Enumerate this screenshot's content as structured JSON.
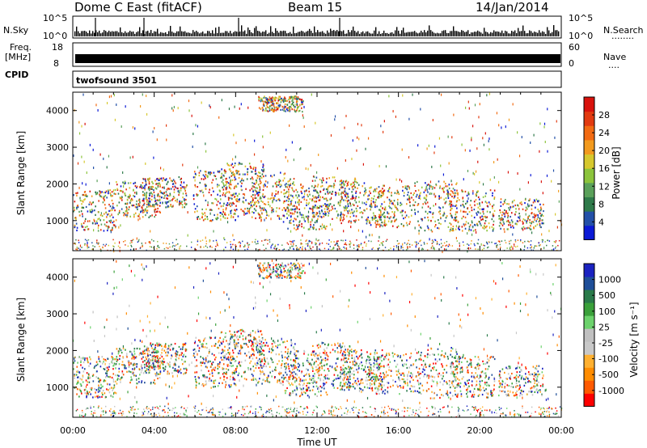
{
  "header": {
    "station": "Dome C East (fitACF)",
    "beam": "Beam 15",
    "date": "14/Jan/2014"
  },
  "strips": {
    "nsky_label": "N.Sky",
    "nsky_ticks": [
      "10^5",
      "10^0"
    ],
    "nsearch_label": "N.Search",
    "nsearch_dots": "........",
    "freq_label_1": "Freq.",
    "freq_label_2": "[MHz]",
    "freq_ticks": [
      "18",
      "8"
    ],
    "nave_ticks": [
      "60",
      "0"
    ],
    "nave_label": "Nave",
    "nave_dots": "....",
    "cpid_label": "CPID",
    "cpid_text": "twofsound 3501"
  },
  "colors": {
    "power_scale": [
      "#0b1ad6",
      "#2350a8",
      "#2f7a4a",
      "#5aa05a",
      "#8cc43c",
      "#d6c82e",
      "#f29a1e",
      "#f26a12",
      "#e23a10",
      "#d8120c"
    ],
    "velocity_scale": [
      "#ff0000",
      "#ff5a00",
      "#ff8c00",
      "#ffb030",
      "#c8c8c8",
      "#c0c0c0",
      "#6cd26c",
      "#3aa03a",
      "#2a7a4a",
      "#1e4e98",
      "#1a22c0"
    ]
  },
  "chart_data": [
    {
      "type": "heatmap",
      "panel": "power",
      "ylabel": "Slant Range [km]",
      "colorbar_label": "Power [dB]",
      "colorbar_ticks": [
        "4",
        "8",
        "12",
        "16",
        "20",
        "24",
        "28"
      ],
      "ylim": [
        180,
        4500
      ],
      "yticks": [
        1000,
        2000,
        3000,
        4000
      ],
      "xlim": [
        0,
        24
      ],
      "xticks": [
        "00:00",
        "04:00",
        "08:00",
        "12:00",
        "16:00",
        "20:00",
        "00:00"
      ],
      "xlabel": ""
    },
    {
      "type": "heatmap",
      "panel": "velocity",
      "ylabel": "Slant Range [km]",
      "colorbar_label": "Velocity [m s⁻¹]",
      "colorbar_ticks": [
        "-1000",
        "-500",
        "-100",
        "-25",
        "25",
        "100",
        "500",
        "1000"
      ],
      "ylim": [
        180,
        4500
      ],
      "yticks": [
        1000,
        2000,
        3000,
        4000
      ],
      "xlim": [
        0,
        24
      ],
      "xticks": [
        "00:00",
        "04:00",
        "08:00",
        "12:00",
        "16:00",
        "20:00",
        "00:00"
      ],
      "xlabel": "Time UT"
    }
  ]
}
